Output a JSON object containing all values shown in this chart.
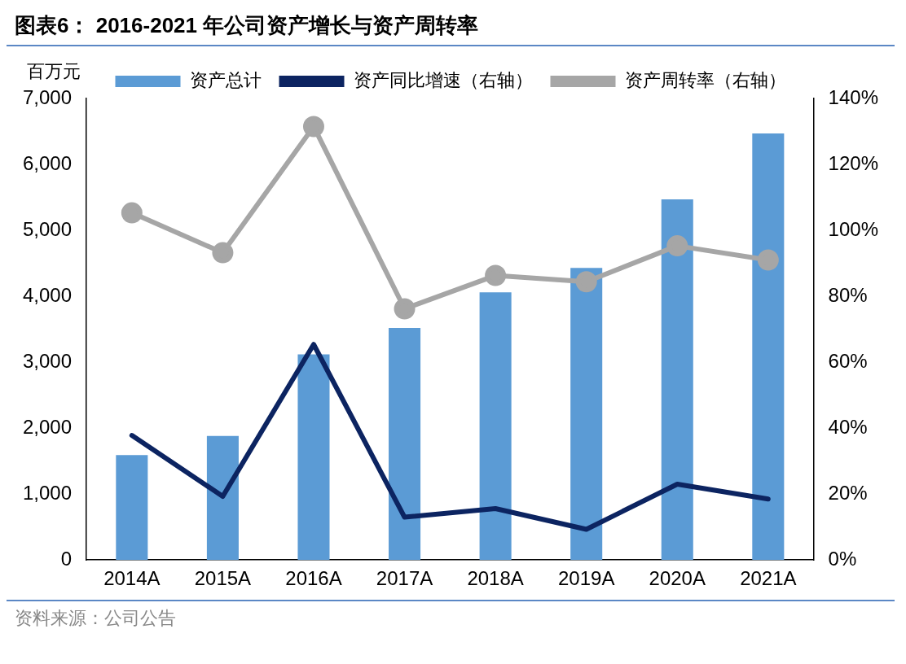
{
  "chart_data": {
    "type": "bar",
    "title": "图表6：  2016-2021 年公司资产增长与资产周转率",
    "ylabel": "百万元",
    "categories": [
      "2014A",
      "2015A",
      "2016A",
      "2017A",
      "2018A",
      "2019A",
      "2020A",
      "2021A"
    ],
    "series": [
      {
        "name": "资产总计",
        "color": "#5b9bd5",
        "values": [
          1590,
          1880,
          3120,
          3520,
          4060,
          4430,
          5470,
          6470
        ]
      },
      {
        "name": "资产同比增速（右轴）",
        "type": "line",
        "axis": "y2",
        "color": "#0c2461",
        "marker": "none",
        "values": [
          37.8,
          19.3,
          65.4,
          13,
          15.6,
          9.3,
          23,
          18.5
        ]
      },
      {
        "name": "资产周转率（右轴）",
        "type": "line",
        "axis": "y2",
        "color": "#a6a6a6",
        "marker": "circle",
        "values": [
          105.3,
          93.2,
          131.5,
          76.2,
          86.3,
          84.4,
          95.3,
          91
        ]
      }
    ],
    "ylim": [
      0,
      7000
    ],
    "yticks": [
      {
        "value": 0,
        "label": "0"
      },
      {
        "value": 1000,
        "label": "1,000"
      },
      {
        "value": 2000,
        "label": "2,000"
      },
      {
        "value": 3000,
        "label": "3,000"
      },
      {
        "value": 4000,
        "label": "4,000"
      },
      {
        "value": 5000,
        "label": "5,000"
      },
      {
        "value": 6000,
        "label": "6,000"
      },
      {
        "value": 7000,
        "label": "7,000"
      }
    ],
    "y2lim": [
      0,
      140
    ],
    "y2ticks": [
      {
        "value": 0,
        "label": "0%"
      },
      {
        "value": 20,
        "label": "20%"
      },
      {
        "value": 40,
        "label": "40%"
      },
      {
        "value": 60,
        "label": "60%"
      },
      {
        "value": 80,
        "label": "80%"
      },
      {
        "value": 100,
        "label": "100%"
      },
      {
        "value": 120,
        "label": "120%"
      },
      {
        "value": 140,
        "label": "140%"
      }
    ],
    "grid": false,
    "legend": "top",
    "annotations": [
      "资料来源：公司公告"
    ]
  }
}
